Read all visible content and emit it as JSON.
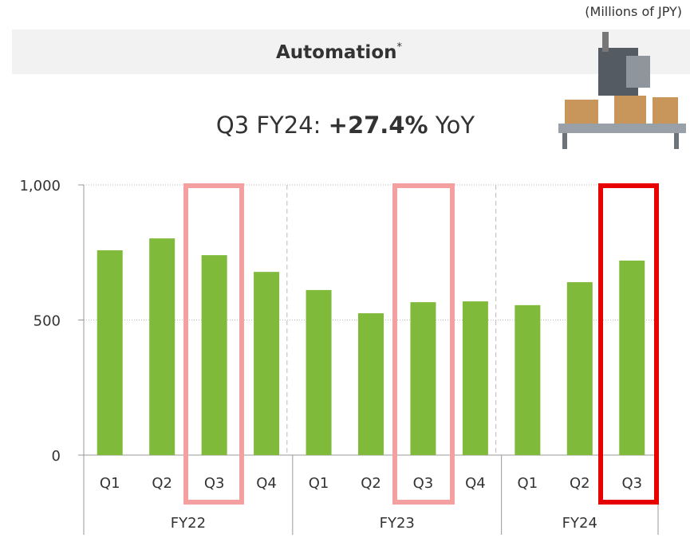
{
  "chart_data": {
    "type": "bar",
    "unit_note": "(Millions of JPY)",
    "title": "Automation",
    "title_mark": "*",
    "subtitle": {
      "prefix": "Q3 FY24: ",
      "emphasis": "+27.4%",
      "suffix": " YoY"
    },
    "color": "#7fba3a",
    "groups": [
      {
        "name": "FY22",
        "categories": [
          "Q1",
          "Q2",
          "Q3",
          "Q4"
        ],
        "values": [
          758,
          802,
          740,
          678
        ]
      },
      {
        "name": "FY23",
        "categories": [
          "Q1",
          "Q2",
          "Q3",
          "Q4"
        ],
        "values": [
          611,
          525,
          566,
          569
        ]
      },
      {
        "name": "FY24",
        "categories": [
          "Q1",
          "Q2",
          "Q3"
        ],
        "values": [
          555,
          640,
          720
        ]
      }
    ],
    "ylim": [
      0,
      1000
    ],
    "yticks": [
      0,
      500,
      {
        "value": 1000,
        "label": "1,000"
      }
    ],
    "grid": true
  }
}
